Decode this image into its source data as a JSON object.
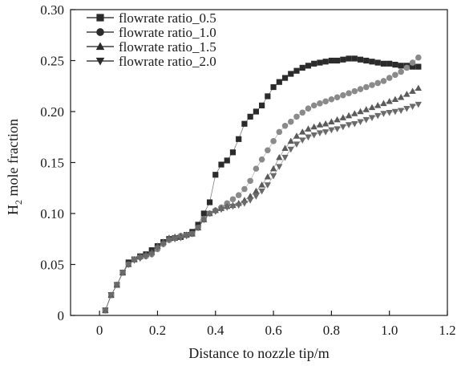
{
  "chart_data": {
    "type": "scatter",
    "xlabel": "Distance to nozzle tip/m",
    "ylabel_main": "H",
    "ylabel_sub": "2",
    "ylabel_rest": " mole fraction",
    "xlim": [
      -0.1,
      1.2
    ],
    "ylim": [
      0,
      0.3
    ],
    "xticks": [
      0,
      0.2,
      0.4,
      0.6,
      0.8,
      1.0,
      1.2
    ],
    "xtick_labels": [
      "0",
      "0.2",
      "0.4",
      "0.6",
      "0.8",
      "1.0",
      "1.2"
    ],
    "yticks": [
      0,
      0.05,
      0.1,
      0.15,
      0.2,
      0.25,
      0.3
    ],
    "ytick_labels": [
      "0",
      "0.05",
      "0.10",
      "0.15",
      "0.20",
      "0.25",
      "0.30"
    ],
    "grid": false,
    "legend_position": "top-left",
    "series": [
      {
        "name": "flowrate ratio_0.5",
        "marker": "square",
        "color": "#2b2b2b",
        "x": [
          0.02,
          0.04,
          0.06,
          0.08,
          0.1,
          0.12,
          0.14,
          0.16,
          0.18,
          0.2,
          0.22,
          0.24,
          0.26,
          0.28,
          0.3,
          0.32,
          0.34,
          0.36,
          0.38,
          0.4,
          0.42,
          0.44,
          0.46,
          0.48,
          0.5,
          0.52,
          0.54,
          0.56,
          0.58,
          0.6,
          0.62,
          0.64,
          0.66,
          0.68,
          0.7,
          0.72,
          0.74,
          0.76,
          0.78,
          0.8,
          0.82,
          0.84,
          0.86,
          0.88,
          0.9,
          0.92,
          0.94,
          0.96,
          0.98,
          1.0,
          1.02,
          1.04,
          1.06,
          1.08,
          1.1
        ],
        "y": [
          0.005,
          0.02,
          0.03,
          0.042,
          0.052,
          0.055,
          0.058,
          0.06,
          0.064,
          0.068,
          0.072,
          0.075,
          0.076,
          0.077,
          0.079,
          0.082,
          0.089,
          0.1,
          0.111,
          0.138,
          0.148,
          0.152,
          0.16,
          0.173,
          0.188,
          0.195,
          0.2,
          0.206,
          0.215,
          0.224,
          0.229,
          0.233,
          0.237,
          0.24,
          0.243,
          0.245,
          0.247,
          0.248,
          0.249,
          0.25,
          0.25,
          0.251,
          0.252,
          0.252,
          0.251,
          0.25,
          0.249,
          0.248,
          0.247,
          0.247,
          0.246,
          0.245,
          0.245,
          0.244,
          0.244
        ]
      },
      {
        "name": "flowrate ratio_1.0",
        "marker": "circle",
        "color": "#8a8a8a",
        "x": [
          0.02,
          0.04,
          0.06,
          0.08,
          0.1,
          0.12,
          0.14,
          0.16,
          0.18,
          0.2,
          0.22,
          0.24,
          0.26,
          0.28,
          0.3,
          0.32,
          0.34,
          0.36,
          0.38,
          0.4,
          0.42,
          0.44,
          0.46,
          0.48,
          0.5,
          0.52,
          0.54,
          0.56,
          0.58,
          0.6,
          0.62,
          0.64,
          0.66,
          0.68,
          0.7,
          0.72,
          0.74,
          0.76,
          0.78,
          0.8,
          0.82,
          0.84,
          0.86,
          0.88,
          0.9,
          0.92,
          0.94,
          0.96,
          0.98,
          1.0,
          1.02,
          1.04,
          1.06,
          1.08,
          1.1
        ],
        "y": [
          0.005,
          0.02,
          0.03,
          0.042,
          0.05,
          0.055,
          0.057,
          0.058,
          0.06,
          0.065,
          0.07,
          0.074,
          0.076,
          0.078,
          0.079,
          0.08,
          0.086,
          0.094,
          0.1,
          0.103,
          0.106,
          0.11,
          0.114,
          0.118,
          0.124,
          0.132,
          0.144,
          0.153,
          0.162,
          0.171,
          0.18,
          0.186,
          0.19,
          0.195,
          0.199,
          0.203,
          0.206,
          0.208,
          0.21,
          0.212,
          0.214,
          0.216,
          0.218,
          0.22,
          0.222,
          0.224,
          0.226,
          0.228,
          0.23,
          0.233,
          0.236,
          0.239,
          0.243,
          0.248,
          0.253
        ]
      },
      {
        "name": "flowrate ratio_1.5",
        "marker": "triangle-up",
        "color": "#5a5a5a",
        "x": [
          0.02,
          0.04,
          0.06,
          0.08,
          0.1,
          0.12,
          0.14,
          0.16,
          0.18,
          0.2,
          0.22,
          0.24,
          0.26,
          0.28,
          0.3,
          0.32,
          0.34,
          0.36,
          0.38,
          0.4,
          0.42,
          0.44,
          0.46,
          0.48,
          0.5,
          0.52,
          0.54,
          0.56,
          0.58,
          0.6,
          0.62,
          0.64,
          0.66,
          0.68,
          0.7,
          0.72,
          0.74,
          0.76,
          0.78,
          0.8,
          0.82,
          0.84,
          0.86,
          0.88,
          0.9,
          0.92,
          0.94,
          0.96,
          0.98,
          1.0,
          1.02,
          1.04,
          1.06,
          1.08,
          1.1
        ],
        "y": [
          0.005,
          0.02,
          0.03,
          0.042,
          0.05,
          0.055,
          0.058,
          0.06,
          0.062,
          0.068,
          0.072,
          0.076,
          0.077,
          0.078,
          0.079,
          0.08,
          0.086,
          0.094,
          0.1,
          0.103,
          0.105,
          0.107,
          0.108,
          0.11,
          0.113,
          0.117,
          0.122,
          0.128,
          0.136,
          0.144,
          0.155,
          0.164,
          0.171,
          0.176,
          0.18,
          0.183,
          0.185,
          0.187,
          0.188,
          0.19,
          0.192,
          0.194,
          0.196,
          0.198,
          0.2,
          0.202,
          0.204,
          0.206,
          0.208,
          0.21,
          0.212,
          0.214,
          0.217,
          0.22,
          0.223
        ]
      },
      {
        "name": "flowrate ratio_2.0",
        "marker": "triangle-down",
        "color": "#6a6a6a",
        "x": [
          0.02,
          0.04,
          0.06,
          0.08,
          0.1,
          0.12,
          0.14,
          0.16,
          0.18,
          0.2,
          0.22,
          0.24,
          0.26,
          0.28,
          0.3,
          0.32,
          0.34,
          0.36,
          0.38,
          0.4,
          0.42,
          0.44,
          0.46,
          0.48,
          0.5,
          0.52,
          0.54,
          0.56,
          0.58,
          0.6,
          0.62,
          0.64,
          0.66,
          0.68,
          0.7,
          0.72,
          0.74,
          0.76,
          0.78,
          0.8,
          0.82,
          0.84,
          0.86,
          0.88,
          0.9,
          0.92,
          0.94,
          0.96,
          0.98,
          1.0,
          1.02,
          1.04,
          1.06,
          1.08,
          1.1
        ],
        "y": [
          0.005,
          0.02,
          0.03,
          0.042,
          0.05,
          0.054,
          0.056,
          0.058,
          0.06,
          0.066,
          0.07,
          0.074,
          0.075,
          0.076,
          0.078,
          0.08,
          0.086,
          0.094,
          0.1,
          0.102,
          0.104,
          0.106,
          0.107,
          0.108,
          0.11,
          0.113,
          0.117,
          0.122,
          0.128,
          0.137,
          0.146,
          0.155,
          0.163,
          0.168,
          0.172,
          0.175,
          0.177,
          0.179,
          0.18,
          0.182,
          0.183,
          0.185,
          0.187,
          0.188,
          0.19,
          0.192,
          0.194,
          0.196,
          0.198,
          0.199,
          0.2,
          0.201,
          0.203,
          0.205,
          0.207
        ]
      }
    ]
  }
}
